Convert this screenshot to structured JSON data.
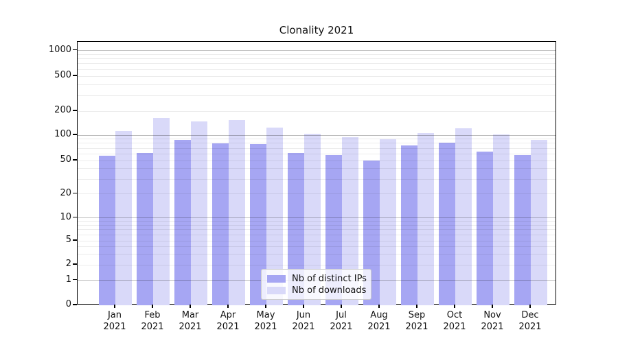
{
  "title": "Clonality 2021",
  "legend": {
    "entries": [
      {
        "label": "Nb of distinct IPs"
      },
      {
        "label": "Nb of downloads"
      }
    ]
  },
  "chart_data": {
    "type": "bar",
    "title": "Clonality 2021",
    "categories": [
      {
        "month": "Jan",
        "year": "2021"
      },
      {
        "month": "Feb",
        "year": "2021"
      },
      {
        "month": "Mar",
        "year": "2021"
      },
      {
        "month": "Apr",
        "year": "2021"
      },
      {
        "month": "May",
        "year": "2021"
      },
      {
        "month": "Jun",
        "year": "2021"
      },
      {
        "month": "Jul",
        "year": "2021"
      },
      {
        "month": "Aug",
        "year": "2021"
      },
      {
        "month": "Sep",
        "year": "2021"
      },
      {
        "month": "Oct",
        "year": "2021"
      },
      {
        "month": "Nov",
        "year": "2021"
      },
      {
        "month": "Dec",
        "year": "2021"
      }
    ],
    "series": [
      {
        "name": "Nb of distinct IPs",
        "color": "#a6a6f3",
        "values": [
          57,
          62,
          88,
          80,
          78,
          62,
          58,
          50,
          75,
          81,
          64,
          58
        ]
      },
      {
        "name": "Nb of downloads",
        "color": "#d9d9f9",
        "values": [
          112,
          165,
          150,
          155,
          125,
          104,
          95,
          89,
          107,
          122,
          101,
          88
        ]
      }
    ],
    "xlabel": "",
    "ylabel": "",
    "y_scale": "symlog",
    "y_ticks": [
      0,
      1,
      2,
      5,
      10,
      20,
      50,
      100,
      200,
      500,
      1000
    ],
    "ylim": [
      0,
      1300
    ],
    "grid": true,
    "grid_major_at": [
      1,
      10,
      100,
      1000
    ],
    "legend_position": "lower center",
    "bar_colors": {
      "distinct_ips": "#a6a6f3",
      "downloads": "#d9d9f9"
    }
  }
}
